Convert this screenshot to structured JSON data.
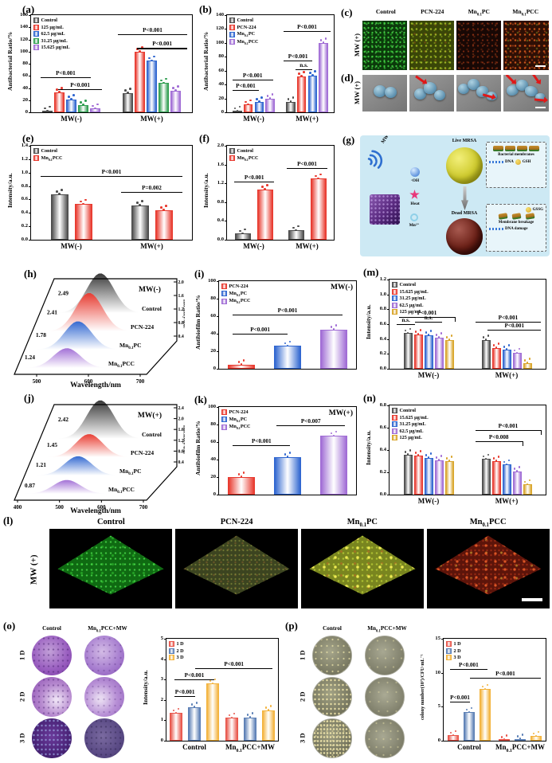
{
  "panels": {
    "a": "(a)",
    "b": "(b)",
    "c": "(c)",
    "d": "(d)",
    "e": "(e)",
    "f": "(f)",
    "g": "(g)",
    "h": "(h)",
    "i": "(i)",
    "j": "(j)",
    "k": "(k)",
    "l": "(l)",
    "m": "(m)",
    "n": "(n)",
    "o": "(o)",
    "p": "(p)"
  },
  "chart_data": {
    "a": {
      "type": "bar",
      "ylabel": "Antibacterial Ratio/%",
      "ymax": 160,
      "ystep": 20,
      "categories": [
        "MW(-)",
        "MW(+)"
      ],
      "series": [
        {
          "name": "Control",
          "color": "#4d4d4d",
          "values": [
            2,
            32
          ]
        },
        {
          "name": "125 μg/mL",
          "color": "#e8392e",
          "values": [
            33,
            100
          ]
        },
        {
          "name": "62.5 μg/mL",
          "color": "#2f66d0",
          "values": [
            21,
            85
          ]
        },
        {
          "name": "31.25 μg/mL",
          "color": "#2f9e50",
          "values": [
            12,
            48
          ]
        },
        {
          "name": "15.625 μg/mL",
          "color": "#a06cd5",
          "values": [
            6,
            36
          ]
        }
      ],
      "annotations": [
        {
          "text": "P<0.001",
          "fx1": 0.06,
          "fx2": 0.37,
          "fy": 0.64
        },
        {
          "text": "P<0.001",
          "fx1": 0.17,
          "fx2": 0.44,
          "fy": 0.76
        },
        {
          "text": "P<0.001",
          "fx1": 0.54,
          "fx2": 0.97,
          "fy": 0.2
        },
        {
          "text": "P<0.001",
          "fx1": 0.66,
          "fx2": 0.97,
          "fy": 0.34
        }
      ]
    },
    "b": {
      "type": "bar",
      "ylabel": "Antibacterial Ratio/%",
      "ymax": 140,
      "ystep": 20,
      "categories": [
        "MW(-)",
        "MW(+)"
      ],
      "series": [
        {
          "name": "Control",
          "color": "#4d4d4d",
          "values": [
            2,
            15
          ]
        },
        {
          "name": "PCN-224",
          "color": "#e8392e",
          "values": [
            11,
            52
          ]
        },
        {
          "name": "Mn0.1PC",
          "color": "#2f66d0",
          "values": [
            15,
            53
          ]
        },
        {
          "name": "Mn0.1PCC",
          "color": "#a06cd5",
          "values": [
            20,
            100
          ]
        }
      ],
      "annotations": [
        {
          "text": "P<0.001",
          "fx1": 0.05,
          "fx2": 0.43,
          "fy": 0.66
        },
        {
          "text": "P<0.001",
          "fx1": 0.05,
          "fx2": 0.3,
          "fy": 0.77
        },
        {
          "text": "P<0.001",
          "fx1": 0.53,
          "fx2": 0.97,
          "fy": 0.16
        },
        {
          "text": "P<0.001",
          "fx1": 0.53,
          "fx2": 0.8,
          "fy": 0.47
        },
        {
          "text": "n.s.",
          "fx1": 0.64,
          "fx2": 0.8,
          "fy": 0.56
        }
      ]
    },
    "e": {
      "type": "bar",
      "ylabel": "Intensity/a.u.",
      "ymax": 1.4,
      "ystep": 0.2,
      "categories": [
        "MW(-)",
        "MW(+)"
      ],
      "series": [
        {
          "name": "Control",
          "color": "#4d4d4d",
          "values": [
            0.68,
            0.51
          ]
        },
        {
          "name": "Mn0.1PCC",
          "color": "#e8392e",
          "values": [
            0.53,
            0.44
          ]
        }
      ],
      "annotations": [
        {
          "text": "P<0.001",
          "fx1": 0.06,
          "fx2": 0.94,
          "fy": 0.32
        },
        {
          "text": "P=0.002",
          "fx1": 0.56,
          "fx2": 0.94,
          "fy": 0.49
        }
      ]
    },
    "f": {
      "type": "bar",
      "ylabel": "Intensity/a.u.",
      "ymax": 2.0,
      "ystep": 0.4,
      "categories": [
        "MW(-)",
        "MW(+)"
      ],
      "series": [
        {
          "name": "Control",
          "color": "#4d4d4d",
          "values": [
            0.13,
            0.2
          ]
        },
        {
          "name": "Mn0.1PCC",
          "color": "#e8392e",
          "values": [
            1.07,
            1.3
          ]
        }
      ],
      "annotations": [
        {
          "text": "P<0.001",
          "fx1": 0.07,
          "fx2": 0.44,
          "fy": 0.38
        },
        {
          "text": "P<0.001",
          "fx1": 0.56,
          "fx2": 0.94,
          "fy": 0.24
        }
      ]
    },
    "h": {
      "type": "waterfall",
      "condition": "MW(-)",
      "xlabel": "Wavelength/nm",
      "ylabel": "Intensity/a.u.",
      "xticks": [
        500,
        600,
        700
      ],
      "yticks": [
        0.4,
        0.8,
        1.2,
        1.6,
        2.0
      ],
      "series": [
        {
          "name": "Control",
          "color": "#333333",
          "peak": 2.49
        },
        {
          "name": "PCN-224",
          "color": "#e8392e",
          "peak": 2.41
        },
        {
          "name": "Mn0.1PC",
          "color": "#2f66d0",
          "peak": 1.78
        },
        {
          "name": "Mn0.1PCC",
          "color": "#a06cd5",
          "peak": 1.24
        }
      ]
    },
    "j": {
      "type": "waterfall",
      "condition": "MW(+)",
      "xlabel": "Wavelength/nm",
      "ylabel": "Intensity/a.u.",
      "xticks": [
        400,
        500,
        600,
        700
      ],
      "yticks": [
        0.4,
        0.8,
        1.2,
        1.6,
        2.0,
        2.4
      ],
      "series": [
        {
          "name": "Control",
          "color": "#333333",
          "peak": 2.42
        },
        {
          "name": "PCN-224",
          "color": "#e8392e",
          "peak": 1.45
        },
        {
          "name": "Mn0.1PC",
          "color": "#2f66d0",
          "peak": 1.21
        },
        {
          "name": "Mn0.1PCC",
          "color": "#a06cd5",
          "peak": 0.87
        }
      ]
    },
    "i": {
      "type": "bar",
      "ylabel": "Antibiofilm Ratio/%",
      "ymax": 100,
      "ystep": 20,
      "corner": "MW(-)",
      "categories": [
        ""
      ],
      "series": [
        {
          "name": "PCN-224",
          "color": "#e8392e",
          "values": [
            5
          ]
        },
        {
          "name": "Mn0.1PC",
          "color": "#2f66d0",
          "values": [
            26
          ]
        },
        {
          "name": "Mn0.1PCC",
          "color": "#a06cd5",
          "values": [
            45
          ]
        }
      ],
      "annotations": [
        {
          "text": "P<0.001",
          "fx1": 0.1,
          "fx2": 0.9,
          "fy": 0.38
        },
        {
          "text": "P<0.001",
          "fx1": 0.1,
          "fx2": 0.5,
          "fy": 0.6
        }
      ]
    },
    "k": {
      "type": "bar",
      "ylabel": "Antibiofilm Ratio/%",
      "ymax": 100,
      "ystep": 20,
      "corner": "MW(+)",
      "categories": [
        ""
      ],
      "series": [
        {
          "name": "PCN-224",
          "color": "#e8392e",
          "values": [
            20
          ]
        },
        {
          "name": "Mn0.1PC",
          "color": "#2f66d0",
          "values": [
            43
          ]
        },
        {
          "name": "Mn0.1PCC",
          "color": "#a06cd5",
          "values": [
            67
          ]
        }
      ],
      "annotations": [
        {
          "text": "P<0.001",
          "fx1": 0.1,
          "fx2": 0.52,
          "fy": 0.44
        },
        {
          "text": "P<0.007",
          "fx1": 0.42,
          "fx2": 0.92,
          "fy": 0.21
        }
      ]
    },
    "m": {
      "type": "bar",
      "ylabel": "Intensity/a.u.",
      "ymax": 1.2,
      "ystep": 0.2,
      "categories": [
        "MW(-)",
        "MW(+)"
      ],
      "series": [
        {
          "name": "Control",
          "color": "#4d4d4d",
          "values": [
            0.48,
            0.39
          ]
        },
        {
          "name": "15.625 μg/mL",
          "color": "#e8392e",
          "values": [
            0.46,
            0.28
          ]
        },
        {
          "name": "31.25 μg/mL",
          "color": "#2f66d0",
          "values": [
            0.45,
            0.26
          ]
        },
        {
          "name": "62.5 μg/mL",
          "color": "#a06cd5",
          "values": [
            0.42,
            0.21
          ]
        },
        {
          "name": "125 μg/mL",
          "color": "#d9a52a",
          "values": [
            0.39,
            0.08
          ]
        }
      ],
      "annotations": [
        {
          "text": "n.s.",
          "fx1": 0.045,
          "fx2": 0.165,
          "fy": 0.5
        },
        {
          "text": "n.s.",
          "fx1": 0.165,
          "fx2": 0.335,
          "fy": 0.47
        },
        {
          "text": "P<0.001",
          "fx1": 0.06,
          "fx2": 0.42,
          "fy": 0.42,
          "tick": "right"
        },
        {
          "text": "P<0.001",
          "fx1": 0.55,
          "fx2": 0.97,
          "fy": 0.47
        },
        {
          "text": "P<0.001",
          "fx1": 0.63,
          "fx2": 0.97,
          "fy": 0.56
        }
      ]
    },
    "n": {
      "type": "bar",
      "ylabel": "Intensity/a.u.",
      "ymax": 0.8,
      "ystep": 0.2,
      "categories": [
        "MW(-)",
        "MW(+)"
      ],
      "series": [
        {
          "name": "Control",
          "color": "#4d4d4d",
          "values": [
            0.36,
            0.32
          ]
        },
        {
          "name": "15.625 μg/mL",
          "color": "#e8392e",
          "values": [
            0.35,
            0.3
          ]
        },
        {
          "name": "31.25 μg/mL",
          "color": "#2f66d0",
          "values": [
            0.33,
            0.27
          ]
        },
        {
          "name": "62.5 μg/mL",
          "color": "#a06cd5",
          "values": [
            0.31,
            0.21
          ]
        },
        {
          "name": "125 μg/mL",
          "color": "#d9a52a",
          "values": [
            0.3,
            0.09
          ]
        }
      ],
      "annotations": [
        {
          "text": "P<0.001",
          "fx1": 0.55,
          "fx2": 0.97,
          "fy": 0.28,
          "tick": "right"
        },
        {
          "text": "P<0.008",
          "fx1": 0.55,
          "fx2": 0.85,
          "fy": 0.4,
          "tick": "right"
        }
      ]
    },
    "o": {
      "type": "bar",
      "ylabel": "Intensity/a.u.",
      "ymax": 5,
      "ystep": 1,
      "categories": [
        "Control",
        "Mn0.1PCC+MW"
      ],
      "series": [
        {
          "name": "1 D",
          "color": "#e8554a",
          "values": [
            1.35,
            1.12
          ]
        },
        {
          "name": "2 D",
          "color": "#5b7fb5",
          "values": [
            1.65,
            1.15
          ]
        },
        {
          "name": "3 D",
          "color": "#f3b33c",
          "values": [
            2.8,
            1.5
          ]
        }
      ],
      "annotations": [
        {
          "text": "P<0.001",
          "fx1": 0.07,
          "fx2": 0.26,
          "fy": 0.56
        },
        {
          "text": "P<0.001",
          "fx1": 0.07,
          "fx2": 0.43,
          "fy": 0.4
        },
        {
          "text": "P<0.001",
          "fx1": 0.26,
          "fx2": 0.95,
          "fy": 0.29
        }
      ]
    },
    "p": {
      "type": "bar",
      "ylabel": "colony number(10⁷)/CFU·mL⁻¹",
      "ymax": 15,
      "ystep": 5,
      "categories": [
        "Control",
        "Mn0.1PCC+MW"
      ],
      "series": [
        {
          "name": "1 D",
          "color": "#e8554a",
          "values": [
            0.8,
            0.15
          ]
        },
        {
          "name": "2 D",
          "color": "#5b7fb5",
          "values": [
            4.2,
            0.25
          ]
        },
        {
          "name": "3 D",
          "color": "#f3b33c",
          "values": [
            7.6,
            0.65
          ]
        }
      ],
      "annotations": [
        {
          "text": "P<0.001",
          "fx1": 0.06,
          "fx2": 0.26,
          "fy": 0.62
        },
        {
          "text": "P<0.001",
          "fx1": 0.06,
          "fx2": 0.43,
          "fy": 0.3
        },
        {
          "text": "P<0.001",
          "fx1": 0.26,
          "fx2": 0.95,
          "fy": 0.38
        }
      ]
    }
  },
  "micrographs": {
    "c": {
      "row_label": "MW (+)",
      "columns": [
        "Control",
        "PCN-224",
        "Mn0.1PC",
        "Mn0.1PCC"
      ]
    },
    "d": {
      "row_label": "MW (+)"
    },
    "l": {
      "row_label": "MW (+)",
      "columns": [
        "Control",
        "PCN-224",
        "Mn0.1PC",
        "Mn0.1PCC"
      ]
    }
  },
  "assays": {
    "o": {
      "columns": [
        "Control",
        "Mn0.1PCC+MW"
      ],
      "rows": [
        "1 D",
        "2 D",
        "3 D"
      ]
    },
    "p": {
      "columns": [
        "Control",
        "Mn0.1PCC+MW"
      ],
      "rows": [
        "1 D",
        "2 D",
        "3 D"
      ]
    }
  },
  "scheme": {
    "mw": "MW",
    "live": "Live MRSA",
    "dead": "Dead MRSA",
    "oh": "·OH",
    "heat": "Heat",
    "mn": "Mn²⁺",
    "membranes": "Bacterial membranes",
    "dna": "DNA",
    "gsh": "GSH",
    "gssg": "GSSG",
    "breakage": "Membrane breakage",
    "dna_damage": "DNA damage"
  }
}
